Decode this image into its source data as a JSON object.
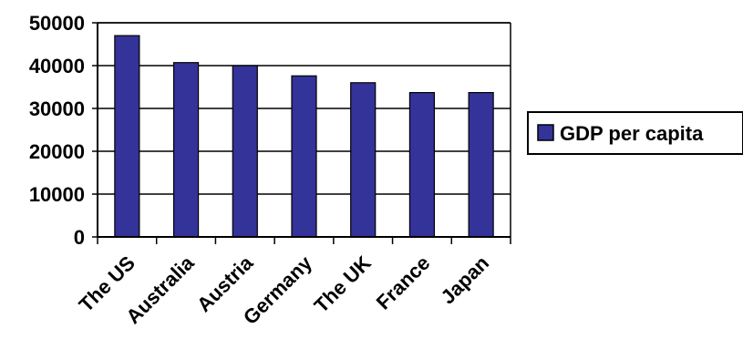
{
  "chart_data": {
    "type": "bar",
    "title": "",
    "xlabel": "",
    "ylabel": "",
    "categories": [
      "The US",
      "Australia",
      "Austria",
      "Germany",
      "The UK",
      "France",
      "Japan"
    ],
    "series": [
      {
        "name": "GDP per capita",
        "values": [
          47000,
          40700,
          40000,
          37600,
          36000,
          33700,
          33700
        ]
      }
    ],
    "ylim": [
      0,
      50000
    ],
    "yticks": [
      "0",
      "10000",
      "20000",
      "30000",
      "40000",
      "50000"
    ],
    "grid": true,
    "legend": "right",
    "colors": {
      "bar": "#333399",
      "bar_edge": "#000000",
      "grid": "#000000",
      "axis": "#000000"
    }
  }
}
